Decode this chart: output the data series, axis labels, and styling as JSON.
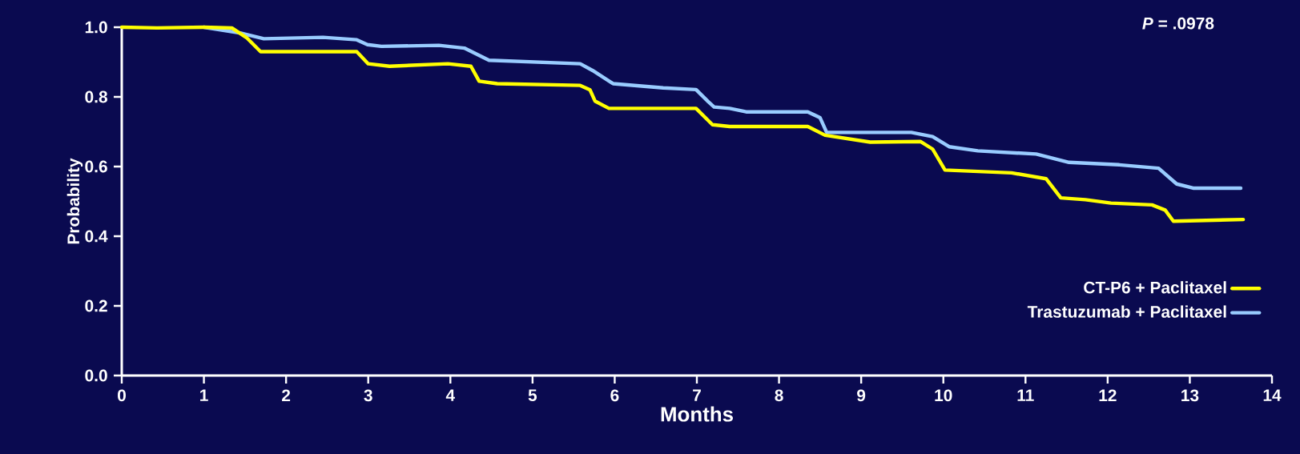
{
  "chart_data": {
    "type": "line",
    "xlabel": "Months",
    "ylabel": "Probability",
    "annotations": [
      "*P* = .0978"
    ],
    "series": [
      {
        "name": "CT-P6 + Paclitaxel",
        "color": "#ffff00",
        "x": [
          0,
          0.43,
          1.0,
          1.34,
          1.52,
          1.69,
          2.86,
          3.0,
          3.26,
          3.97,
          4.25,
          4.35,
          4.57,
          5.58,
          5.7,
          5.76,
          5.93,
          6.99,
          7.19,
          7.4,
          8.35,
          8.56,
          9.11,
          9.72,
          9.87,
          10.02,
          10.83,
          11.25,
          11.43,
          11.73,
          12.04,
          12.54,
          12.7,
          12.8,
          13.65
        ],
        "values": [
          1.0,
          0.998,
          1.0,
          0.998,
          0.97,
          0.93,
          0.93,
          0.895,
          0.888,
          0.895,
          0.888,
          0.845,
          0.838,
          0.833,
          0.82,
          0.788,
          0.767,
          0.767,
          0.72,
          0.715,
          0.715,
          0.69,
          0.67,
          0.672,
          0.65,
          0.59,
          0.582,
          0.565,
          0.51,
          0.505,
          0.495,
          0.49,
          0.475,
          0.443,
          0.448
        ]
      },
      {
        "name": "Trastuzumab + Paclitaxel",
        "color": "#99ccff",
        "x": [
          1.0,
          1.45,
          1.73,
          2.45,
          2.86,
          2.99,
          3.16,
          3.86,
          4.17,
          4.47,
          5.58,
          5.73,
          5.98,
          6.59,
          6.99,
          7.14,
          7.21,
          7.4,
          7.6,
          8.35,
          8.5,
          8.58,
          9.0,
          9.61,
          9.87,
          10.07,
          10.42,
          11.13,
          11.53,
          12.14,
          12.62,
          12.84,
          13.04,
          13.62
        ],
        "values": [
          1.0,
          0.983,
          0.967,
          0.971,
          0.964,
          0.95,
          0.945,
          0.948,
          0.94,
          0.905,
          0.895,
          0.876,
          0.838,
          0.826,
          0.821,
          0.786,
          0.771,
          0.767,
          0.757,
          0.757,
          0.74,
          0.698,
          0.698,
          0.698,
          0.686,
          0.657,
          0.645,
          0.636,
          0.612,
          0.605,
          0.595,
          0.55,
          0.538,
          0.538
        ]
      }
    ],
    "xlim": [
      0,
      14
    ],
    "ylim": [
      0,
      1.0
    ],
    "xticks": [
      0,
      1,
      2,
      3,
      4,
      5,
      6,
      7,
      8,
      9,
      10,
      11,
      12,
      13,
      14
    ],
    "yticks": [
      {
        "value": 0,
        "label": "0.0"
      },
      {
        "value": 0.2,
        "label": "0.2"
      },
      {
        "value": 0.4,
        "label": "0.4"
      },
      {
        "value": 0.6,
        "label": "0.6"
      },
      {
        "value": 0.8,
        "label": "0.8"
      },
      {
        "value": 1.0,
        "label": "1.0"
      }
    ],
    "grid": false,
    "legend": "bottom right",
    "marker": "none",
    "line_style": "solid"
  }
}
